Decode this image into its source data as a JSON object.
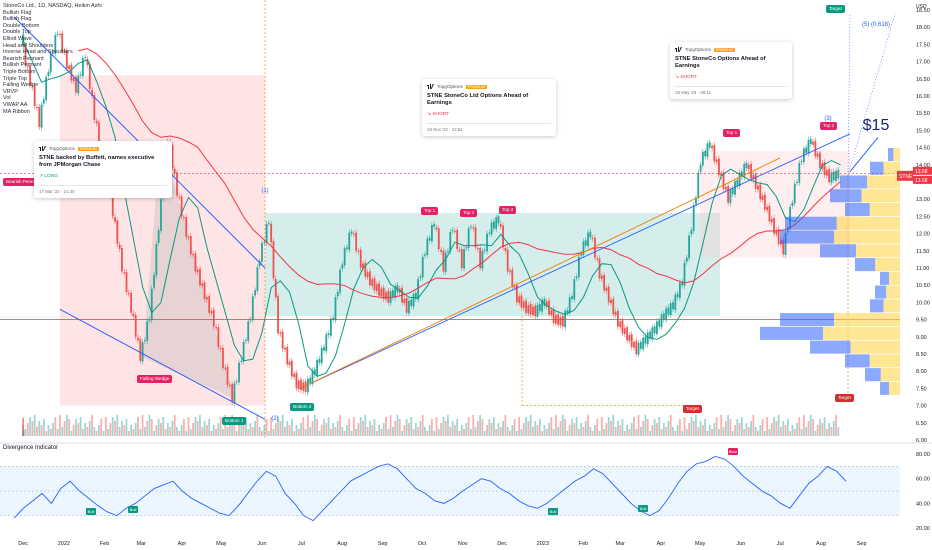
{
  "chart_data": [
    {
      "type": "line",
      "title": "StoneCo Ltd., 1D, NASDAQ, Heikin Ashi",
      "ylabel": "USD",
      "ylim": [
        6.0,
        18.5
      ],
      "price_ticks": [
        "18.50",
        "18.00",
        "17.50",
        "17.00",
        "16.50",
        "16.00",
        "15.50",
        "15.00",
        "14.50",
        "14.00",
        "13.50",
        "13.00",
        "12.50",
        "12.00",
        "11.50",
        "11.00",
        "10.50",
        "10.00",
        "9.50",
        "9.00",
        "8.50",
        "8.00",
        "7.50",
        "7.00",
        "6.50",
        "6.00"
      ],
      "time_ticks": [
        "Dec",
        "2022",
        "Feb",
        "Mar",
        "Apr",
        "May",
        "Jun",
        "Jul",
        "Aug",
        "Sep",
        "Oct",
        "Nov",
        "Dec",
        "2023",
        "Feb",
        "Mar",
        "Apr",
        "May",
        "Jun",
        "Jul",
        "Aug",
        "Sep"
      ],
      "pattern_labels": [
        "Bullish Flag",
        "Bullish Flag",
        "Double Bottom",
        "Double Top",
        "Elliott Wave",
        "Head and Shoulders",
        "Inverse Head and Shoulders",
        "Bearish Pennant",
        "Bullish Pennant",
        "Triple Bottom",
        "Triple Top",
        "Falling Wedge",
        "VRVP",
        "Vol",
        "VWAP AA",
        "MA Ribbon"
      ],
      "series": [
        {
          "name": "STNE",
          "x": [
            "2021-12-01",
            "2021-12-08",
            "2021-12-15",
            "2021-12-22",
            "2021-12-29",
            "2022-01-05",
            "2022-01-12",
            "2022-01-19",
            "2022-01-26",
            "2022-02-02",
            "2022-02-09",
            "2022-02-16",
            "2022-02-23",
            "2022-03-02",
            "2022-03-09",
            "2022-03-16",
            "2022-03-23",
            "2022-03-30",
            "2022-04-06",
            "2022-04-13",
            "2022-04-20",
            "2022-04-27",
            "2022-05-04",
            "2022-05-11",
            "2022-05-18",
            "2022-05-25",
            "2022-06-01",
            "2022-06-08",
            "2022-06-15",
            "2022-06-22",
            "2022-06-29",
            "2022-07-06",
            "2022-07-13",
            "2022-07-20",
            "2022-07-27",
            "2022-08-03",
            "2022-08-10",
            "2022-08-17",
            "2022-08-24",
            "2022-08-31",
            "2022-09-07",
            "2022-09-14",
            "2022-09-21",
            "2022-09-28",
            "2022-10-05",
            "2022-10-12",
            "2022-10-19",
            "2022-10-26",
            "2022-11-02",
            "2022-11-09",
            "2022-11-16",
            "2022-11-23",
            "2022-11-30",
            "2022-12-07",
            "2022-12-14",
            "2022-12-21",
            "2022-12-28",
            "2023-01-04",
            "2023-01-11",
            "2023-01-18",
            "2023-01-25",
            "2023-02-01",
            "2023-02-08",
            "2023-02-15",
            "2023-02-22",
            "2023-03-01",
            "2023-03-08",
            "2023-03-15",
            "2023-03-22",
            "2023-03-29",
            "2023-04-05",
            "2023-04-12",
            "2023-04-19",
            "2023-04-26",
            "2023-05-03",
            "2023-05-10",
            "2023-05-17",
            "2023-05-24",
            "2023-05-31",
            "2023-06-07",
            "2023-06-14",
            "2023-06-21",
            "2023-06-28",
            "2023-07-05",
            "2023-07-12",
            "2023-07-19",
            "2023-07-26",
            "2023-08-02",
            "2023-08-09",
            "2023-08-16"
          ],
          "values": [
            17.6,
            16.4,
            15.2,
            16.8,
            17.9,
            16.9,
            16.2,
            17.2,
            15.4,
            14.0,
            12.6,
            11.0,
            9.8,
            8.4,
            9.6,
            12.2,
            14.8,
            13.2,
            12.0,
            11.0,
            10.2,
            9.4,
            8.2,
            7.2,
            8.4,
            9.6,
            11.3,
            12.4,
            9.2,
            8.3,
            7.6,
            7.5,
            8.0,
            8.7,
            9.6,
            11.2,
            12.1,
            11.1,
            10.6,
            10.3,
            10.1,
            10.4,
            9.8,
            10.2,
            11.5,
            12.3,
            11.0,
            12.2,
            11.1,
            12.3,
            11.1,
            12.1,
            12.4,
            11.0,
            10.1,
            9.8,
            9.7,
            10.0,
            9.5,
            9.4,
            10.2,
            11.5,
            12.0,
            10.8,
            10.1,
            9.4,
            9.0,
            8.6,
            8.9,
            9.2,
            9.6,
            9.9,
            10.6,
            12.2,
            14.1,
            14.6,
            13.8,
            13.0,
            13.5,
            14.0,
            13.4,
            12.8,
            12.1,
            11.5,
            13.0,
            14.2,
            14.7,
            14.0,
            13.6,
            13.7
          ]
        }
      ],
      "last_price_label": "STNE",
      "last_price": "13.68",
      "last_price_2": "13.68",
      "annotation_labels": [
        "(1)",
        "(2)",
        "(3)",
        "(5) (0.618)",
        "$15"
      ],
      "pattern_tags": [
        {
          "text": "Bearish Pennant",
          "color": "#e91e63"
        },
        {
          "text": "Falling Wedge",
          "color": "#e91e63"
        },
        {
          "text": "Bottom 1",
          "color": "#089981"
        },
        {
          "text": "Bottom 2",
          "color": "#089981"
        },
        {
          "text": "Top 1",
          "color": "#e91e63"
        },
        {
          "text": "Top 2",
          "color": "#e91e63"
        },
        {
          "text": "Top 3",
          "color": "#e91e63"
        },
        {
          "text": "Top 1",
          "color": "#e91e63"
        },
        {
          "text": "Top 2",
          "color": "#e91e63"
        },
        {
          "text": "Target",
          "color": "#d32f2f"
        },
        {
          "text": "Target",
          "color": "#089981"
        },
        {
          "text": "Target",
          "color": "#d32f2f"
        }
      ]
    },
    {
      "type": "line",
      "title": "Divergence Indicator",
      "ylim": [
        20,
        80
      ],
      "ticks": [
        "80.00",
        "60.00",
        "40.00",
        "20.00"
      ],
      "series": [
        {
          "name": "",
          "values": [
            28,
            36,
            42,
            48,
            40,
            52,
            58,
            50,
            44,
            38,
            33,
            30,
            36,
            40,
            46,
            52,
            55,
            58,
            50,
            44,
            40,
            36,
            32,
            30,
            38,
            48,
            58,
            66,
            62,
            48,
            40,
            30,
            26,
            34,
            42,
            50,
            58,
            62,
            66,
            70,
            72,
            68,
            60,
            52,
            48,
            42,
            40,
            44,
            50,
            55,
            60,
            58,
            52,
            48,
            42,
            38,
            36,
            40,
            46,
            52,
            58,
            62,
            68,
            64,
            56,
            48,
            40,
            34,
            30,
            34,
            44,
            56,
            66,
            72,
            74,
            78,
            76,
            70,
            62,
            56,
            50,
            46,
            40,
            36,
            46,
            56,
            62,
            70,
            66,
            58
          ]
        }
      ],
      "signal_tags": [
        {
          "text": "Bull",
          "color": "#089981"
        },
        {
          "text": "Bull",
          "color": "#089981"
        },
        {
          "text": "Bull",
          "color": "#089981"
        },
        {
          "text": "Bull",
          "color": "#089981"
        },
        {
          "text": "Bear",
          "color": "#e91e63"
        }
      ]
    }
  ],
  "cards": [
    {
      "brand": "TopgOptions",
      "badge": "PREMIUM",
      "title": "STNE backed by Buffett, names executive from JPMorgan Chase",
      "direction": "LONG",
      "date": "17 Mar '22 · 21:40"
    },
    {
      "brand": "TopgOptions",
      "badge": "PREMIUM",
      "title": "STNE StoneCo Ltd Options Ahead of Earnings",
      "direction": "SHORT",
      "date": "18 Nov '22 · 22:51"
    },
    {
      "brand": "TopgOptions",
      "badge": "PREMIUM",
      "title": "STNE StoneCo Options Ahead of Earnings",
      "direction": "SHORT",
      "date": "16 May '23 · 08:11"
    }
  ],
  "colors": {
    "up": "#26a69a",
    "down": "#ef5350",
    "pattern_blue": "#2962ff",
    "pattern_orange": "#f57c00",
    "vrvp_blue": "#2962ff",
    "vrvp_yellow": "#ffd54f",
    "indicator_line": "#2962ff",
    "ma_red": "#f23645",
    "ma_green": "#089981",
    "bull_zone": "#b2dfdb",
    "bear_zone": "#ffcdd2"
  }
}
